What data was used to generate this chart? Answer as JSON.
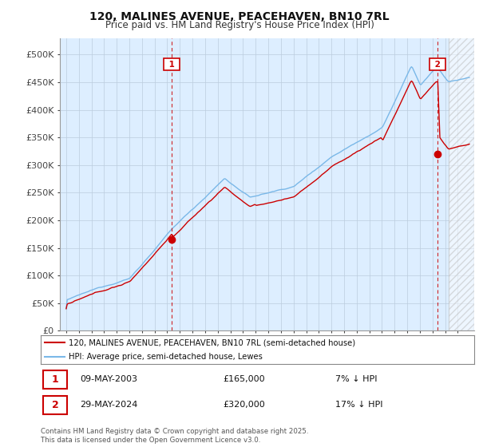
{
  "title": "120, MALINES AVENUE, PEACEHAVEN, BN10 7RL",
  "subtitle": "Price paid vs. HM Land Registry's House Price Index (HPI)",
  "legend_line1": "120, MALINES AVENUE, PEACEHAVEN, BN10 7RL (semi-detached house)",
  "legend_line2": "HPI: Average price, semi-detached house, Lewes",
  "annotation1_date": "09-MAY-2003",
  "annotation1_price": "£165,000",
  "annotation1_note": "7% ↓ HPI",
  "annotation2_date": "29-MAY-2024",
  "annotation2_price": "£320,000",
  "annotation2_note": "17% ↓ HPI",
  "footer": "Contains HM Land Registry data © Crown copyright and database right 2025.\nThis data is licensed under the Open Government Licence v3.0.",
  "hpi_color": "#7ab8e8",
  "price_color": "#cc0000",
  "annotation_color": "#cc0000",
  "background_color": "#ffffff",
  "chart_bg_color": "#ddeeff",
  "grid_color": "#bbccdd",
  "ylim": [
    0,
    530000
  ],
  "yticks": [
    0,
    50000,
    100000,
    150000,
    200000,
    250000,
    300000,
    350000,
    400000,
    450000,
    500000
  ],
  "ytick_labels": [
    "£0",
    "£50K",
    "£100K",
    "£150K",
    "£200K",
    "£250K",
    "£300K",
    "£350K",
    "£400K",
    "£450K",
    "£500K"
  ],
  "ann1_x": 2003.36,
  "ann1_y": 165000,
  "ann2_x": 2024.41,
  "ann2_y": 320000,
  "hatch_start": 2025.3,
  "xlim_left": 1994.5,
  "xlim_right": 2027.3
}
